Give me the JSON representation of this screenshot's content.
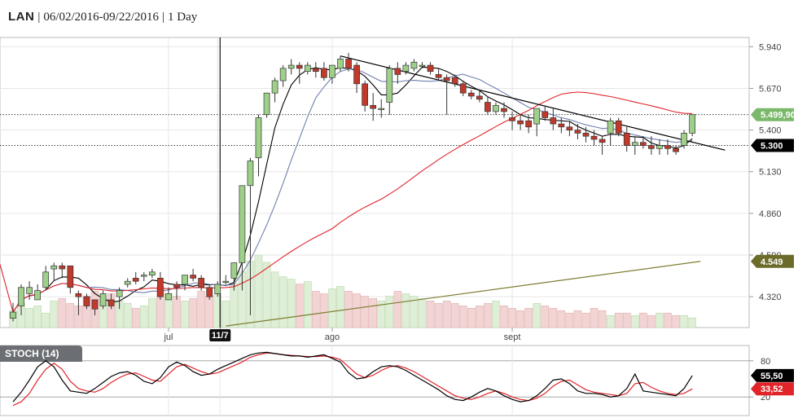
{
  "header": {
    "symbol": "LAN",
    "date_range": "06/02/2016-09/22/2016",
    "interval": "1 Day"
  },
  "colors": {
    "up_candle": "#9fd08a",
    "down_candle": "#c0392b",
    "volume_up": "#dfeed6",
    "volume_down": "#f2d4d4",
    "ma_short": "#000000",
    "ma_mid": "#6f7fae",
    "ma_long": "#e0242a",
    "trend_olive": "#7d7d32",
    "last_price_tag": "#7ab86a",
    "reference_tag": "#000000",
    "olive_tag": "#6b6b2a",
    "stoch_k": "#000000",
    "stoch_d": "#e0242a",
    "grid": "#e6e6e6"
  },
  "chart_data": [
    {
      "type": "candlestick",
      "title": "",
      "x_labels": [
        {
          "label": "jul",
          "index": 19
        },
        {
          "label": "11/7",
          "index": 25,
          "highlight": true
        },
        {
          "label": "ago",
          "index": 39
        },
        {
          "label": "sept",
          "index": 61
        }
      ],
      "y_ticks": [
        5.94,
        5.67,
        5.4,
        5.13,
        4.86,
        4.59,
        4.32
      ],
      "y_tick_labels": [
        "5.940",
        "5.670",
        "5.400",
        "5.130",
        "4.860",
        "4.590",
        "4.320"
      ],
      "ylim": [
        4.12,
        6.0
      ],
      "grid": true,
      "price_tags": [
        {
          "label": "5.499,90",
          "value": 5.4999,
          "kind": "last"
        },
        {
          "label": "5.300",
          "value": 5.3,
          "kind": "reference"
        },
        {
          "label": "4.549",
          "value": 4.549,
          "kind": "trend"
        }
      ],
      "candles": [
        [
          4.18,
          4.28,
          4.16,
          4.22
        ],
        [
          4.26,
          4.4,
          4.2,
          4.38
        ],
        [
          4.34,
          4.42,
          4.3,
          4.38
        ],
        [
          4.3,
          4.4,
          4.3,
          4.36
        ],
        [
          4.38,
          4.52,
          4.36,
          4.48
        ],
        [
          4.5,
          4.54,
          4.42,
          4.52
        ],
        [
          4.52,
          4.54,
          4.44,
          4.5
        ],
        [
          4.52,
          4.52,
          4.34,
          4.38
        ],
        [
          4.34,
          4.36,
          4.2,
          4.32
        ],
        [
          4.32,
          4.34,
          4.24,
          4.26
        ],
        [
          4.3,
          4.3,
          4.2,
          4.24
        ],
        [
          4.26,
          4.36,
          4.24,
          4.34
        ],
        [
          4.3,
          4.34,
          4.24,
          4.26
        ],
        [
          4.32,
          4.38,
          4.24,
          4.36
        ],
        [
          4.4,
          4.44,
          4.38,
          4.42
        ],
        [
          4.44,
          4.48,
          4.4,
          4.42
        ],
        [
          4.46,
          4.48,
          4.42,
          4.46
        ],
        [
          4.46,
          4.5,
          4.44,
          4.48
        ],
        [
          4.44,
          4.48,
          4.3,
          4.32
        ],
        [
          4.3,
          4.38,
          4.3,
          4.34
        ],
        [
          4.4,
          4.42,
          4.3,
          4.38
        ],
        [
          4.4,
          4.46,
          4.36,
          4.46
        ],
        [
          4.46,
          4.5,
          4.42,
          4.44
        ],
        [
          4.44,
          4.46,
          4.36,
          4.38
        ],
        [
          4.38,
          4.4,
          4.3,
          4.32
        ],
        [
          4.34,
          4.42,
          4.32,
          4.4
        ],
        [
          4.42,
          4.46,
          4.4,
          4.42
        ],
        [
          4.44,
          4.54,
          4.36,
          4.54
        ],
        [
          4.54,
          5.04,
          4.36,
          5.04
        ],
        [
          5.04,
          5.22,
          4.2,
          5.2
        ],
        [
          5.22,
          5.5,
          5.1,
          5.48
        ],
        [
          5.5,
          5.64,
          5.48,
          5.64
        ],
        [
          5.64,
          5.74,
          5.58,
          5.72
        ],
        [
          5.72,
          5.82,
          5.68,
          5.8
        ],
        [
          5.8,
          5.86,
          5.76,
          5.82
        ],
        [
          5.82,
          5.84,
          5.7,
          5.8
        ],
        [
          5.78,
          5.84,
          5.76,
          5.82
        ],
        [
          5.8,
          5.84,
          5.74,
          5.78
        ],
        [
          5.8,
          5.84,
          5.72,
          5.74
        ],
        [
          5.74,
          5.82,
          5.7,
          5.82
        ],
        [
          5.8,
          5.88,
          5.78,
          5.86
        ],
        [
          5.86,
          5.9,
          5.78,
          5.8
        ],
        [
          5.82,
          5.84,
          5.64,
          5.7
        ],
        [
          5.7,
          5.72,
          5.52,
          5.56
        ],
        [
          5.56,
          5.64,
          5.46,
          5.54
        ],
        [
          5.54,
          5.6,
          5.48,
          5.54
        ],
        [
          5.58,
          5.82,
          5.5,
          5.8
        ],
        [
          5.8,
          5.84,
          5.7,
          5.76
        ],
        [
          5.78,
          5.84,
          5.76,
          5.82
        ],
        [
          5.8,
          5.86,
          5.78,
          5.84
        ],
        [
          5.82,
          5.84,
          5.8,
          5.82
        ],
        [
          5.82,
          5.84,
          5.76,
          5.78
        ],
        [
          5.76,
          5.8,
          5.72,
          5.74
        ],
        [
          5.74,
          5.76,
          5.5,
          5.72
        ],
        [
          5.74,
          5.76,
          5.68,
          5.7
        ],
        [
          5.7,
          5.72,
          5.62,
          5.64
        ],
        [
          5.64,
          5.66,
          5.6,
          5.62
        ],
        [
          5.62,
          5.66,
          5.58,
          5.6
        ],
        [
          5.58,
          5.62,
          5.5,
          5.52
        ],
        [
          5.52,
          5.58,
          5.5,
          5.56
        ],
        [
          5.54,
          5.58,
          5.48,
          5.52
        ],
        [
          5.48,
          5.52,
          5.4,
          5.46
        ],
        [
          5.46,
          5.5,
          5.4,
          5.44
        ],
        [
          5.46,
          5.5,
          5.38,
          5.42
        ],
        [
          5.44,
          5.54,
          5.36,
          5.54
        ],
        [
          5.52,
          5.56,
          5.46,
          5.48
        ],
        [
          5.48,
          5.54,
          5.4,
          5.44
        ],
        [
          5.44,
          5.48,
          5.38,
          5.42
        ],
        [
          5.42,
          5.46,
          5.36,
          5.4
        ],
        [
          5.4,
          5.44,
          5.34,
          5.38
        ],
        [
          5.38,
          5.42,
          5.32,
          5.36
        ],
        [
          5.36,
          5.4,
          5.3,
          5.34
        ],
        [
          5.34,
          5.36,
          5.24,
          5.32
        ],
        [
          5.38,
          5.48,
          5.3,
          5.46
        ],
        [
          5.46,
          5.48,
          5.36,
          5.38
        ],
        [
          5.38,
          5.42,
          5.26,
          5.3
        ],
        [
          5.3,
          5.36,
          5.24,
          5.32
        ],
        [
          5.32,
          5.36,
          5.28,
          5.3
        ],
        [
          5.3,
          5.36,
          5.24,
          5.28
        ],
        [
          5.28,
          5.34,
          5.24,
          5.3
        ],
        [
          5.3,
          5.34,
          5.24,
          5.28
        ],
        [
          5.28,
          5.3,
          5.24,
          5.26
        ],
        [
          5.3,
          5.4,
          5.28,
          5.38
        ],
        [
          5.38,
          5.5,
          5.36,
          5.5
        ]
      ],
      "volume": [
        14,
        20,
        16,
        18,
        12,
        22,
        24,
        20,
        18,
        26,
        30,
        24,
        28,
        22,
        20,
        16,
        18,
        24,
        34,
        28,
        26,
        22,
        24,
        30,
        26,
        28,
        22,
        36,
        46,
        55,
        60,
        54,
        46,
        42,
        40,
        36,
        38,
        30,
        28,
        32,
        34,
        30,
        28,
        26,
        24,
        22,
        26,
        30,
        28,
        26,
        24,
        22,
        20,
        22,
        20,
        18,
        16,
        18,
        20,
        22,
        18,
        16,
        14,
        16,
        20,
        18,
        16,
        14,
        12,
        14,
        12,
        16,
        14,
        10,
        12,
        12,
        10,
        12,
        10,
        12,
        12,
        10,
        10,
        8
      ],
      "moving_averages": [
        {
          "period": 5,
          "label": "",
          "color": "#000000"
        },
        {
          "period": 10,
          "label": "",
          "color": "#6f7fae"
        },
        {
          "period": 40,
          "label": "",
          "color": "#e0242a"
        }
      ],
      "trendlines": [
        {
          "from": [
            40,
            5.88
          ],
          "to": [
            87,
            5.27
          ],
          "color": "#000000"
        },
        {
          "from": [
            26,
            4.13
          ],
          "to": [
            84,
            4.549
          ],
          "color": "#7d7d32"
        }
      ],
      "reference_lines": [
        5.4999,
        5.3
      ],
      "event_marker": {
        "index": 25,
        "label": "11/7"
      }
    },
    {
      "type": "line",
      "title": "STOCH (14)",
      "ylim": [
        0,
        100
      ],
      "y_ticks": [
        80,
        20
      ],
      "y_tick_labels": [
        "80",
        "20"
      ],
      "grid": true,
      "series": [
        {
          "name": "",
          "color": "#000000",
          "last_label": "55,50",
          "values": [
            12,
            28,
            48,
            70,
            80,
            70,
            48,
            30,
            28,
            26,
            34,
            44,
            54,
            60,
            62,
            56,
            46,
            42,
            52,
            70,
            78,
            72,
            62,
            56,
            58,
            66,
            72,
            78,
            84,
            90,
            93,
            94,
            92,
            90,
            88,
            88,
            86,
            88,
            90,
            84,
            78,
            60,
            50,
            52,
            62,
            70,
            72,
            70,
            64,
            56,
            48,
            40,
            32,
            22,
            16,
            14,
            20,
            28,
            34,
            30,
            22,
            16,
            12,
            14,
            22,
            34,
            48,
            50,
            42,
            30,
            26,
            26,
            24,
            20,
            22,
            34,
            58,
            30,
            28,
            26,
            24,
            22,
            34,
            55.5
          ]
        },
        {
          "name": "",
          "color": "#e0242a",
          "last_label": "33,52",
          "values": [
            6,
            12,
            26,
            48,
            66,
            76,
            66,
            46,
            34,
            30,
            28,
            34,
            44,
            52,
            58,
            60,
            54,
            48,
            46,
            58,
            70,
            74,
            68,
            62,
            58,
            60,
            66,
            72,
            78,
            86,
            90,
            93,
            92,
            90,
            89,
            88,
            87,
            87,
            88,
            86,
            82,
            70,
            58,
            52,
            56,
            64,
            70,
            72,
            68,
            62,
            54,
            46,
            38,
            30,
            22,
            18,
            16,
            20,
            26,
            30,
            26,
            20,
            16,
            14,
            18,
            26,
            38,
            46,
            48,
            40,
            32,
            28,
            26,
            24,
            22,
            26,
            42,
            44,
            36,
            30,
            26,
            24,
            26,
            33.52
          ]
        }
      ]
    }
  ]
}
